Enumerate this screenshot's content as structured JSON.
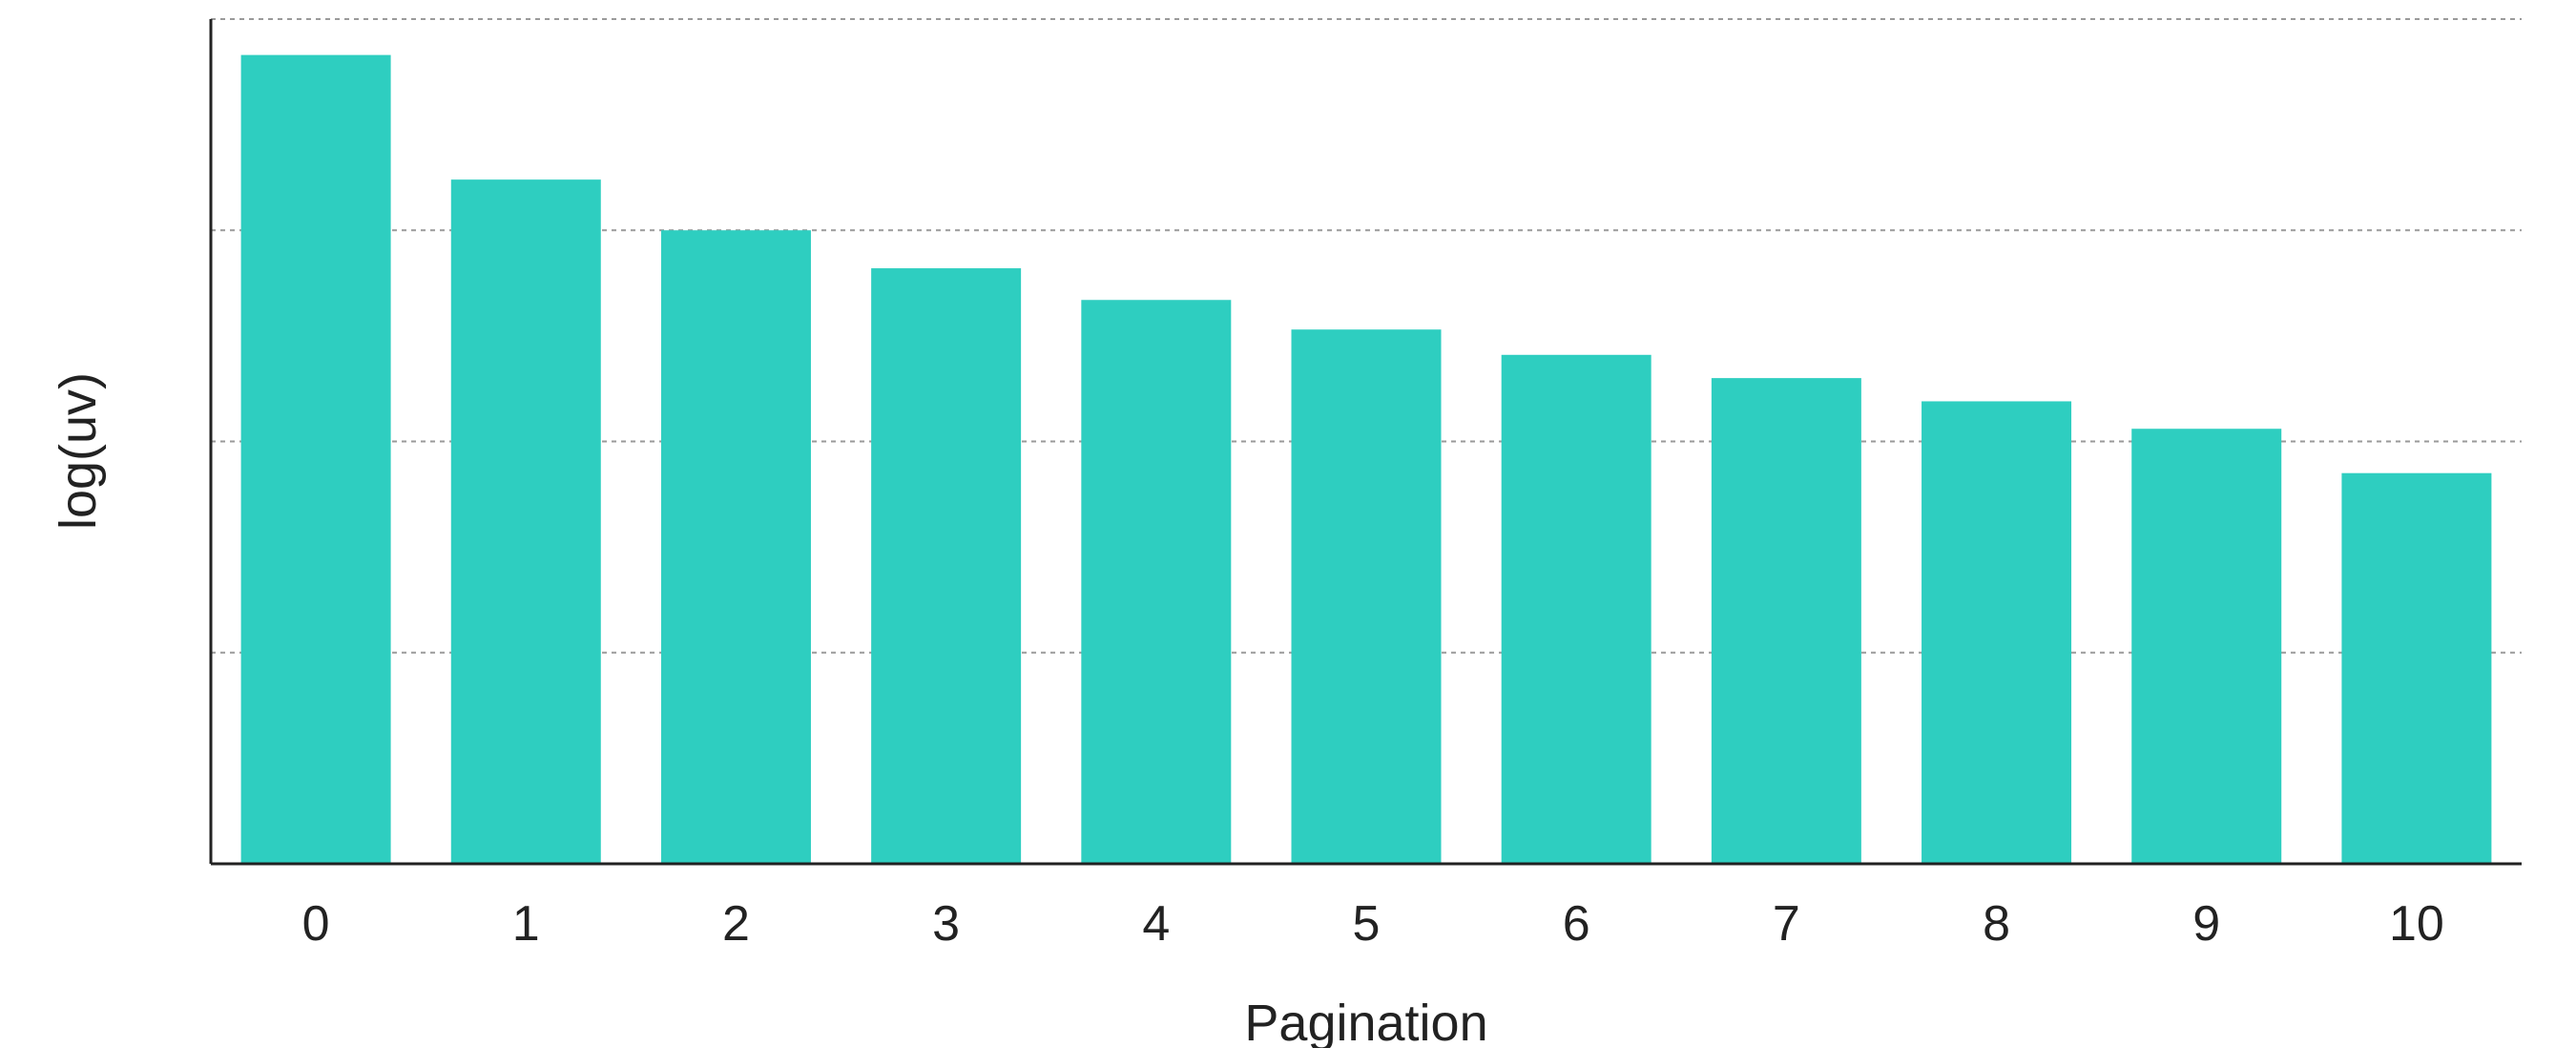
{
  "chart_data": {
    "type": "bar",
    "categories": [
      "0",
      "1",
      "2",
      "3",
      "4",
      "5",
      "6",
      "7",
      "8",
      "9",
      "10"
    ],
    "values": [
      3.83,
      3.24,
      3.0,
      2.82,
      2.67,
      2.53,
      2.41,
      2.3,
      2.19,
      2.06,
      1.85
    ],
    "xlabel": "Pagination",
    "ylabel": "log(uv)",
    "ylim": [
      0,
      4
    ],
    "y_tick_labels_shown": false,
    "grid": "horizontal dashed",
    "bar_color": "#2ecec0",
    "axis_color": "#222222",
    "grid_color": "#9a9a9a"
  }
}
